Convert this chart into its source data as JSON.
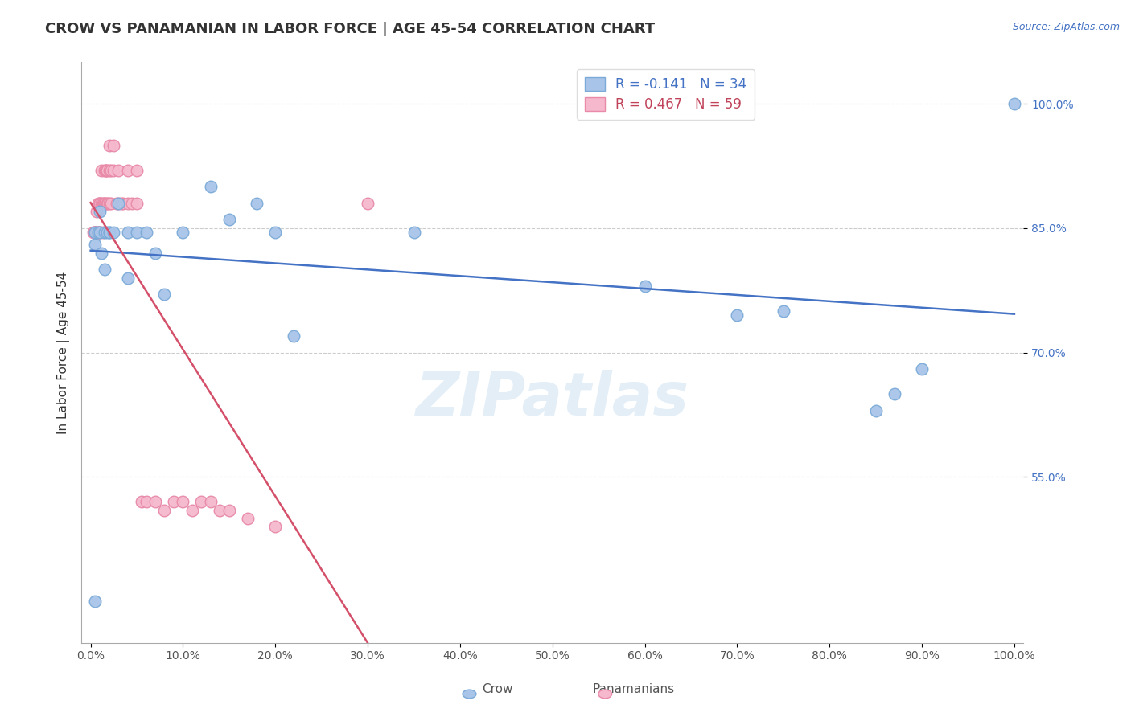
{
  "title": "CROW VS PANAMANIAN IN LABOR FORCE | AGE 45-54 CORRELATION CHART",
  "ylabel": "In Labor Force | Age 45-54",
  "source_text": "Source: ZipAtlas.com",
  "watermark": "ZIPatlas",
  "crow_R": -0.141,
  "crow_N": 34,
  "pana_R": 0.467,
  "pana_N": 59,
  "crow_color": "#a8c4e8",
  "crow_edge": "#7baad8",
  "pana_color": "#f5b8cc",
  "pana_edge": "#e88aa8",
  "crow_line_color": "#4472c4",
  "pana_line_color": "#d4506a",
  "legend_crow_label_r": "R = -0.141",
  "legend_crow_label_n": "N = 34",
  "legend_pana_label_r": "R = 0.467",
  "legend_pana_label_n": "N = 59",
  "crow_x": [
    0.005,
    0.005,
    0.005,
    0.008,
    0.01,
    0.01,
    0.012,
    0.015,
    0.015,
    0.018,
    0.02,
    0.02,
    0.025,
    0.03,
    0.04,
    0.04,
    0.05,
    0.06,
    0.07,
    0.08,
    0.1,
    0.13,
    0.15,
    0.18,
    0.2,
    0.22,
    0.35,
    0.6,
    0.7,
    0.75,
    0.85,
    0.87,
    0.9,
    1.0
  ],
  "crow_y": [
    0.4,
    0.83,
    0.845,
    0.845,
    0.845,
    0.87,
    0.82,
    0.845,
    0.8,
    0.845,
    0.845,
    0.845,
    0.845,
    0.88,
    0.79,
    0.845,
    0.845,
    0.845,
    0.82,
    0.77,
    0.845,
    0.9,
    0.86,
    0.88,
    0.845,
    0.72,
    0.845,
    0.78,
    0.745,
    0.75,
    0.63,
    0.65,
    0.68,
    1.0
  ],
  "pana_x": [
    0.003,
    0.004,
    0.005,
    0.005,
    0.005,
    0.006,
    0.006,
    0.007,
    0.008,
    0.008,
    0.009,
    0.01,
    0.01,
    0.01,
    0.01,
    0.012,
    0.012,
    0.013,
    0.013,
    0.014,
    0.015,
    0.015,
    0.016,
    0.016,
    0.017,
    0.018,
    0.018,
    0.019,
    0.02,
    0.02,
    0.02,
    0.022,
    0.022,
    0.025,
    0.025,
    0.028,
    0.03,
    0.03,
    0.033,
    0.035,
    0.04,
    0.04,
    0.045,
    0.05,
    0.05,
    0.055,
    0.06,
    0.07,
    0.08,
    0.09,
    0.1,
    0.11,
    0.12,
    0.13,
    0.14,
    0.15,
    0.17,
    0.2,
    0.3
  ],
  "pana_y": [
    0.845,
    0.845,
    0.845,
    0.845,
    0.845,
    0.845,
    0.87,
    0.845,
    0.88,
    0.845,
    0.845,
    0.88,
    0.88,
    0.88,
    0.845,
    0.88,
    0.92,
    0.88,
    0.845,
    0.88,
    0.92,
    0.88,
    0.92,
    0.88,
    0.92,
    0.92,
    0.88,
    0.88,
    0.95,
    0.92,
    0.88,
    0.92,
    0.88,
    0.92,
    0.95,
    0.88,
    0.92,
    0.88,
    0.88,
    0.88,
    0.88,
    0.92,
    0.88,
    0.88,
    0.92,
    0.52,
    0.52,
    0.52,
    0.51,
    0.52,
    0.52,
    0.51,
    0.52,
    0.52,
    0.51,
    0.51,
    0.5,
    0.49,
    0.88
  ],
  "xlim": [
    -0.01,
    1.01
  ],
  "ylim": [
    0.35,
    1.05
  ],
  "xtick_vals": [
    0.0,
    0.1,
    0.2,
    0.3,
    0.4,
    0.5,
    0.6,
    0.7,
    0.8,
    0.9,
    1.0
  ],
  "xtick_labels": [
    "0.0%",
    "10.0%",
    "20.0%",
    "30.0%",
    "40.0%",
    "50.0%",
    "60.0%",
    "70.0%",
    "80.0%",
    "90.0%",
    "100.0%"
  ],
  "ytick_values": [
    0.55,
    0.7,
    0.85,
    1.0
  ],
  "ytick_labels": [
    "55.0%",
    "70.0%",
    "85.0%",
    "100.0%"
  ],
  "grid_color": "#cccccc",
  "bg_color": "#ffffff",
  "legend_text_color_blue": "#4472c4",
  "legend_text_color_pink": "#c0435a"
}
